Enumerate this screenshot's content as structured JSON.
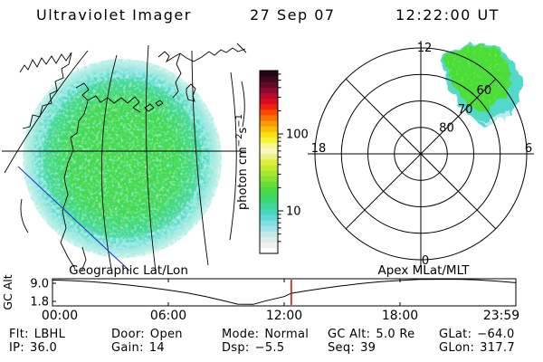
{
  "title": {
    "app": "Ultraviolet Imager",
    "date": "27 Sep 07",
    "time": "12:22:00 UT"
  },
  "geo_panel": {
    "caption": "Geographic Lat/Lon"
  },
  "polar_panel": {
    "caption": "Apex MLat/MLT"
  },
  "colorbar": {
    "label_prefix": "photon cm",
    "sup1": "−2",
    "mid": "s",
    "sup2": "−1"
  },
  "strip": {
    "ylabel": "GC Alt"
  },
  "status": {
    "row1": [
      {
        "label": "Flt:",
        "value": "LBHL"
      },
      {
        "label": "Door:",
        "value": "Open"
      },
      {
        "label": "Mode:",
        "value": "Normal"
      },
      {
        "label": "GC Alt:",
        "value": "5.0 Re"
      },
      {
        "label": "GLat:",
        "value": "−64.0"
      }
    ],
    "row2": [
      {
        "label": "IP:",
        "value": "36.0"
      },
      {
        "label": "Gain:",
        "value": "14"
      },
      {
        "label": "Dsp:",
        "value": "−5.5"
      },
      {
        "label": "Seq:",
        "value": "39"
      },
      {
        "label": "GLon:",
        "value": "317.7"
      }
    ]
  },
  "chart_data": [
    {
      "type": "heatmap",
      "name": "geographic-disk-image",
      "title": "Geographic Lat/Lon",
      "description": "Full-disk Earth UV dayglow image, mostly 8-30 photon cm-2 s-1: green interior with cyan/pale speckled limb; geographic lat/lon grid and coastlines overlaid in black; blue terminator line across lower left",
      "disk_core_color": "#44da4a",
      "disk_limb_color": "#5fd9d5",
      "terminator_color": "#2d35c8"
    },
    {
      "type": "colorbar",
      "name": "intensity-scale",
      "unit": "photon cm-2 s-1",
      "scale": "log",
      "labeled_ticks": [
        10,
        100
      ],
      "minor_ticks": [
        4,
        5,
        6,
        7,
        8,
        9,
        20,
        30,
        40,
        50,
        60,
        70,
        80,
        90,
        200,
        300,
        400,
        500,
        600
      ],
      "value_range_approx": [
        3,
        660
      ],
      "step_colors": [
        "#ffffff",
        "#eef3f1",
        "#dbeeec",
        "#c4e9ea",
        "#a5e4eb",
        "#82dee5",
        "#5fd9d5",
        "#47d7bd",
        "#3ed69c",
        "#3cd77b",
        "#3fd95a",
        "#4cdb41",
        "#66de37",
        "#87e233",
        "#a8e730",
        "#c6eb2d",
        "#ddef3c",
        "#e9f385",
        "#f5f6c0",
        "#f8f78e",
        "#f8f33a",
        "#f9de12",
        "#f9bc06",
        "#f89a04",
        "#f87203",
        "#f84a06",
        "#f0220e",
        "#d90b23",
        "#b50b2d",
        "#8d0a2c",
        "#630925",
        "#3d081f",
        "#1e0717"
      ]
    },
    {
      "type": "heatmap",
      "name": "apex-polar-auroral-image",
      "title": "Apex MLat/MLT",
      "rings_mlat": [
        80,
        70,
        60,
        50
      ],
      "mlt_axis_labels": {
        "top": "12",
        "left": "18",
        "right": "6",
        "bottom": "0"
      },
      "aurora_patch": {
        "mlt_sector": "dawn-to-noon (upper-right quadrant, ~07-12 MLT)",
        "mlat_range": [
          50,
          78
        ],
        "core_color": "#4cdd38",
        "fringe_color": "#52d8cc",
        "outer_fringe_color": "#b8ecea",
        "intensity_photon_range": [
          8,
          30
        ]
      }
    },
    {
      "type": "line",
      "name": "gc-alt-vs-time",
      "ylabel": "GC Alt",
      "y_ticks": [
        9.0,
        1.8
      ],
      "x_ticks": [
        "00:00",
        "06:00",
        "12:00",
        "18:00",
        "23:59"
      ],
      "x_tick_hours": [
        0,
        6,
        12,
        18,
        24
      ],
      "x_range_hours": [
        0,
        24
      ],
      "marker_time_hours": 12.37,
      "marker_color": "#dd0000",
      "points_hour_re": [
        [
          0,
          10.3
        ],
        [
          1,
          10.05
        ],
        [
          2,
          9.6
        ],
        [
          3,
          9.0
        ],
        [
          4,
          8.25
        ],
        [
          5,
          7.35
        ],
        [
          6,
          6.3
        ],
        [
          7,
          5.1
        ],
        [
          8,
          3.6
        ],
        [
          9,
          1.8
        ],
        [
          9.6,
          0.7
        ],
        [
          10.4,
          0.6
        ],
        [
          11,
          1.9
        ],
        [
          12,
          3.7
        ],
        [
          12.37,
          5.0
        ],
        [
          13,
          5.8
        ],
        [
          14,
          7.0
        ],
        [
          15,
          8.0
        ],
        [
          16,
          8.9
        ],
        [
          17,
          9.6
        ],
        [
          18,
          10.1
        ],
        [
          19,
          10.5
        ],
        [
          20,
          10.7
        ],
        [
          21,
          10.65
        ],
        [
          22,
          10.35
        ],
        [
          23,
          9.85
        ],
        [
          24,
          9.2
        ]
      ]
    }
  ]
}
